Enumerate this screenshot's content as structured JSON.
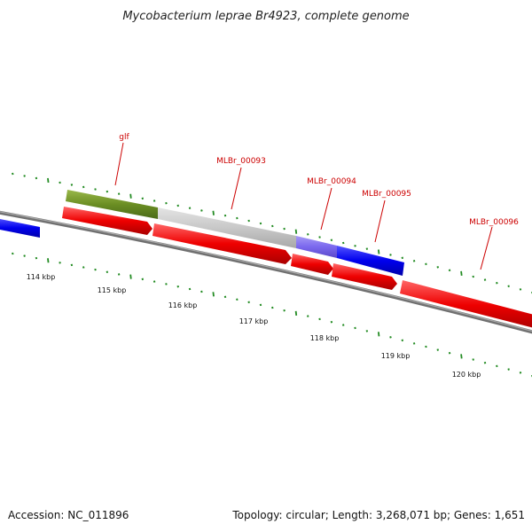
{
  "title": "Mycobacterium leprae Br4923, complete genome",
  "footer": {
    "accession_label": "Accession: NC_011896",
    "summary": "Topology: circular; Length: 3,268,071 bp; Genes: 1,651"
  },
  "scale_labels": [
    "114 kbp",
    "115 kbp",
    "116 kbp",
    "117 kbp",
    "118 kbp",
    "119 kbp",
    "120 kbp"
  ],
  "gene_labels": [
    "glf",
    "MLBr_00093",
    "MLBr_00094",
    "MLBr_00095",
    "MLBr_00096"
  ],
  "colors": {
    "backbone": "#808080",
    "forward_cds": "#0000ee",
    "reverse_cds": "#ee0000",
    "green_feature": "#6b8e23",
    "grey_feature": "#c8c8c8",
    "purple_feature": "#7b68ee",
    "gc_ticks": "#228b22",
    "label_text": "#cc0000"
  }
}
